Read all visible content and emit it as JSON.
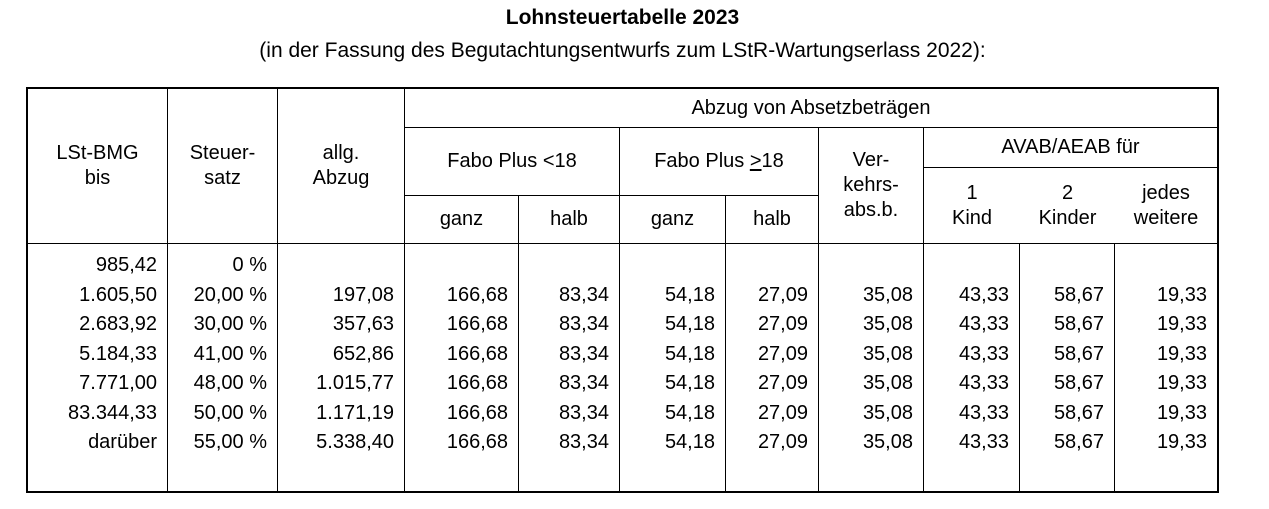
{
  "page": {
    "title": "Lohnsteuertabelle 2023",
    "subtitle": "(in der Fassung des Begutachtungsentwurfs zum LStR-Wartungserlass 2022):"
  },
  "table": {
    "header": {
      "lst_bmg_line1": "LSt-BMG",
      "lst_bmg_line2": "bis",
      "steuersatz_line1": "Steuer-",
      "steuersatz_line2": "satz",
      "allg_abzug_line1": "allg.",
      "allg_abzug_line2": "Abzug",
      "abzug_group": "Abzug von Absetzbeträgen",
      "fabo_under18": "Fabo Plus <18",
      "fabo_over18_pre": "Fabo Plus ",
      "fabo_over18_op": ">",
      "fabo_over18_num": "18",
      "fabo_sub": [
        "ganz",
        "halb",
        "ganz",
        "halb"
      ],
      "verkehr_line1": "Ver-",
      "verkehr_line2": "kehrs-",
      "verkehr_line3": "abs.b.",
      "avab_group": "AVAB/AEAB für",
      "avab_sub": [
        {
          "line1": "1",
          "line2": "Kind"
        },
        {
          "line1": "2",
          "line2": "Kinder"
        },
        {
          "line1": "jedes",
          "line2": "weitere"
        }
      ]
    },
    "rows": [
      [
        "985,42",
        "0 %",
        "",
        "",
        "",
        "",
        "",
        "",
        "",
        "",
        ""
      ],
      [
        "1.605,50",
        "20,00 %",
        "197,08",
        "166,68",
        "83,34",
        "54,18",
        "27,09",
        "35,08",
        "43,33",
        "58,67",
        "19,33"
      ],
      [
        "2.683,92",
        "30,00 %",
        "357,63",
        "166,68",
        "83,34",
        "54,18",
        "27,09",
        "35,08",
        "43,33",
        "58,67",
        "19,33"
      ],
      [
        "5.184,33",
        "41,00 %",
        "652,86",
        "166,68",
        "83,34",
        "54,18",
        "27,09",
        "35,08",
        "43,33",
        "58,67",
        "19,33"
      ],
      [
        "7.771,00",
        "48,00 %",
        "1.015,77",
        "166,68",
        "83,34",
        "54,18",
        "27,09",
        "35,08",
        "43,33",
        "58,67",
        "19,33"
      ],
      [
        "83.344,33",
        "50,00 %",
        "1.171,19",
        "166,68",
        "83,34",
        "54,18",
        "27,09",
        "35,08",
        "43,33",
        "58,67",
        "19,33"
      ],
      [
        "darüber",
        "55,00 %",
        "5.338,40",
        "166,68",
        "83,34",
        "54,18",
        "27,09",
        "35,08",
        "43,33",
        "58,67",
        "19,33"
      ]
    ]
  },
  "colors": {
    "border": "#000000",
    "text": "#000000",
    "background": "#ffffff"
  }
}
